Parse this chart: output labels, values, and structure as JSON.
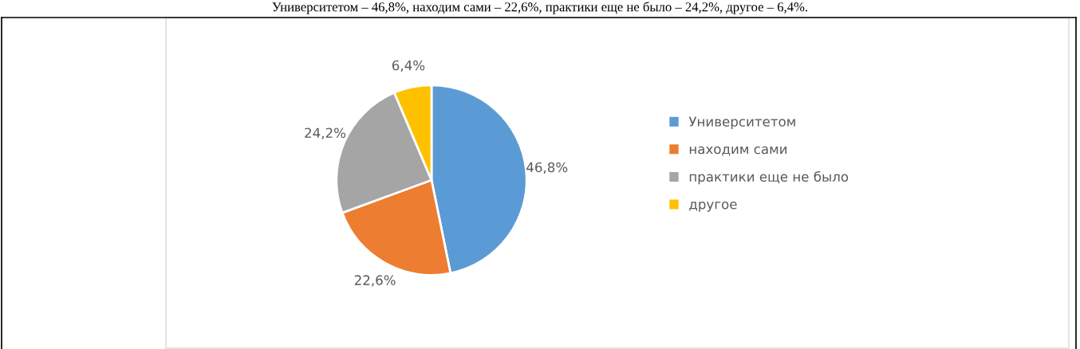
{
  "chart_data": {
    "type": "pie",
    "annotations": [
      "Университетом – 46,8%, находим сами – 22,6%, практики еще не было – 24,2%, другое – 6,4%."
    ],
    "categories": [
      "Университетом",
      "находим сами",
      "практики еще не было",
      "другое"
    ],
    "values": [
      46.8,
      22.6,
      24.2,
      6.4
    ],
    "value_labels": [
      "46,8%",
      "22,6%",
      "24,2%",
      "6,4%"
    ],
    "colors": [
      "#5b9bd5",
      "#ed7d31",
      "#a5a5a5",
      "#ffc000"
    ],
    "legend": "right"
  }
}
